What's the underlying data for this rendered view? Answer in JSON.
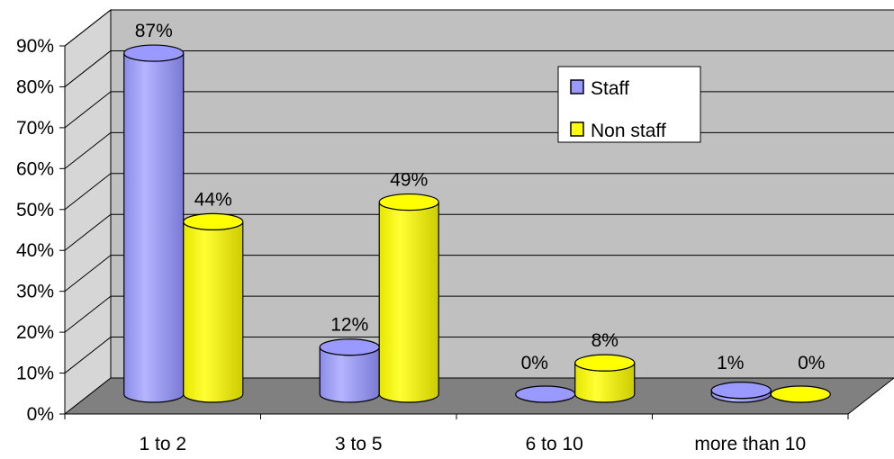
{
  "chart_data": {
    "type": "bar",
    "categories": [
      "1 to 2",
      "3 to 5",
      "6 to 10",
      "more than 10"
    ],
    "series": [
      {
        "name": "Staff",
        "values": [
          87,
          12,
          0,
          1
        ],
        "labels": [
          "87%",
          "12%",
          "0%",
          "1%"
        ],
        "color": "#9999ff"
      },
      {
        "name": "Non staff",
        "values": [
          44,
          49,
          8,
          0
        ],
        "labels": [
          "44%",
          "49%",
          "8%",
          "0%"
        ],
        "color": "#ffff00"
      }
    ],
    "ylim": [
      0,
      90
    ],
    "yticks": [
      "0%",
      "10%",
      "20%",
      "30%",
      "40%",
      "50%",
      "60%",
      "70%",
      "80%",
      "90%"
    ],
    "grid": true,
    "legend_position": "top-right",
    "style": "3d-cylinder"
  }
}
